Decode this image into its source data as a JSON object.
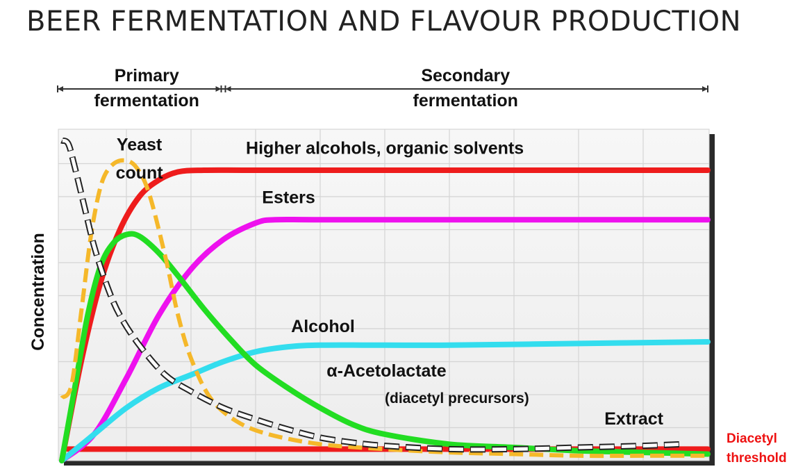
{
  "title": "BEER FERMENTATION AND FLAVOUR PRODUCTION",
  "phases": [
    {
      "line1": "Primary",
      "line2": "fermentation",
      "start": 0,
      "end": 2.5
    },
    {
      "line1": "Secondary",
      "line2": "fermentation",
      "start": 2.5,
      "end": 10
    }
  ],
  "threshold_note": {
    "line1": "Diacetyl",
    "line2": "threshold"
  },
  "chart_data": {
    "type": "line",
    "title": "BEER FERMENTATION AND FLAVOUR PRODUCTION",
    "xlabel": "",
    "ylabel": "Concentration",
    "xlim": [
      0,
      10
    ],
    "ylim": [
      0,
      10
    ],
    "grid": true,
    "legend": "none (curves labelled directly)",
    "series": [
      {
        "name": "Higher alcohols, organic solvents",
        "color": "#ee1c1c",
        "style": "solid",
        "x": [
          0,
          0.3,
          0.6,
          0.9,
          1.2,
          1.5,
          1.8,
          2.2,
          3,
          5,
          8,
          10
        ],
        "y": [
          0,
          3.0,
          5.4,
          7.0,
          8.0,
          8.5,
          8.75,
          8.8,
          8.8,
          8.8,
          8.8,
          8.8
        ]
      },
      {
        "name": "Esters",
        "color": "#ee11ee",
        "style": "solid",
        "x": [
          0,
          0.5,
          1.0,
          1.5,
          2.0,
          2.5,
          3.0,
          3.3,
          4,
          6,
          8,
          10
        ],
        "y": [
          0,
          0.8,
          2.5,
          4.4,
          5.8,
          6.7,
          7.2,
          7.3,
          7.3,
          7.3,
          7.3,
          7.3
        ]
      },
      {
        "name": "Yeast count",
        "color": "#f5b82a",
        "style": "dashed",
        "x": [
          0,
          0.15,
          0.3,
          0.45,
          0.6,
          0.75,
          0.95,
          1.15,
          1.35,
          1.6,
          1.8,
          2.0,
          2.3,
          2.7,
          3.2,
          4,
          5,
          6,
          7,
          8,
          9,
          10
        ],
        "y": [
          1.9,
          2.3,
          4.5,
          6.8,
          8.3,
          8.9,
          9.1,
          8.9,
          8.1,
          6.2,
          4.4,
          3.1,
          1.9,
          1.2,
          0.8,
          0.5,
          0.35,
          0.25,
          0.2,
          0.15,
          0.15,
          0.15
        ]
      },
      {
        "name": "α-Acetolactate (diacetyl precursors)",
        "color": "#22dd22",
        "style": "solid",
        "x": [
          0,
          0.2,
          0.4,
          0.6,
          0.8,
          1.0,
          1.2,
          1.5,
          1.8,
          2.2,
          2.6,
          3.0,
          3.5,
          4.0,
          4.5,
          5,
          6,
          7,
          8,
          9,
          10
        ],
        "y": [
          0,
          2.2,
          4.4,
          5.9,
          6.6,
          6.85,
          6.8,
          6.3,
          5.6,
          4.6,
          3.7,
          2.9,
          2.2,
          1.6,
          1.1,
          0.8,
          0.5,
          0.4,
          0.3,
          0.25,
          0.2
        ]
      },
      {
        "name": "Alcohol",
        "color": "#33ddee",
        "style": "solid",
        "x": [
          0,
          0.5,
          1.0,
          1.5,
          2.0,
          2.5,
          3.0,
          3.5,
          4.0,
          5,
          6,
          8,
          10
        ],
        "y": [
          0,
          0.8,
          1.6,
          2.2,
          2.6,
          3.0,
          3.3,
          3.45,
          3.5,
          3.5,
          3.5,
          3.55,
          3.6
        ]
      },
      {
        "name": "Extract",
        "color": "#222222",
        "style": "dashed",
        "x": [
          0,
          0.1,
          0.2,
          0.35,
          0.5,
          0.7,
          0.9,
          1.2,
          1.6,
          2.0,
          2.5,
          3.0,
          3.5,
          4,
          4.5,
          5,
          6,
          7,
          8,
          9,
          9.6
        ],
        "y": [
          9.7,
          9.6,
          8.9,
          7.7,
          6.5,
          5.3,
          4.4,
          3.5,
          2.6,
          2.1,
          1.6,
          1.25,
          0.95,
          0.7,
          0.55,
          0.45,
          0.35,
          0.35,
          0.4,
          0.45,
          0.5
        ]
      },
      {
        "name": "Diacetyl threshold",
        "color": "#ee1c1c",
        "style": "solid",
        "x": [
          0.1,
          10
        ],
        "y": [
          0.35,
          0.35
        ]
      }
    ],
    "annotations": [
      {
        "text": "Yeast",
        "x": 1.2,
        "y": 9.4,
        "anchor": "middle",
        "series": "Yeast count"
      },
      {
        "text": "count",
        "x": 1.2,
        "y": 8.55,
        "anchor": "middle",
        "series": "Yeast count"
      },
      {
        "text": "Higher alcohols, organic solvents",
        "x": 2.85,
        "y": 9.3,
        "anchor": "start",
        "series": "Higher alcohols, organic solvents"
      },
      {
        "text": "Esters",
        "x": 3.1,
        "y": 7.8,
        "anchor": "start",
        "series": "Esters"
      },
      {
        "text": "Alcohol",
        "x": 3.55,
        "y": 3.9,
        "anchor": "start",
        "series": "Alcohol"
      },
      {
        "text": "α-Acetolactate",
        "x": 4.1,
        "y": 2.55,
        "anchor": "start",
        "series": "α-Acetolactate (diacetyl precursors)"
      },
      {
        "text": "(diacetyl precursors)",
        "x": 5.0,
        "y": 1.75,
        "anchor": "start",
        "series": "α-Acetolactate (diacetyl precursors)"
      },
      {
        "text": "Extract",
        "x": 8.4,
        "y": 1.1,
        "anchor": "start",
        "series": "Extract"
      }
    ]
  }
}
